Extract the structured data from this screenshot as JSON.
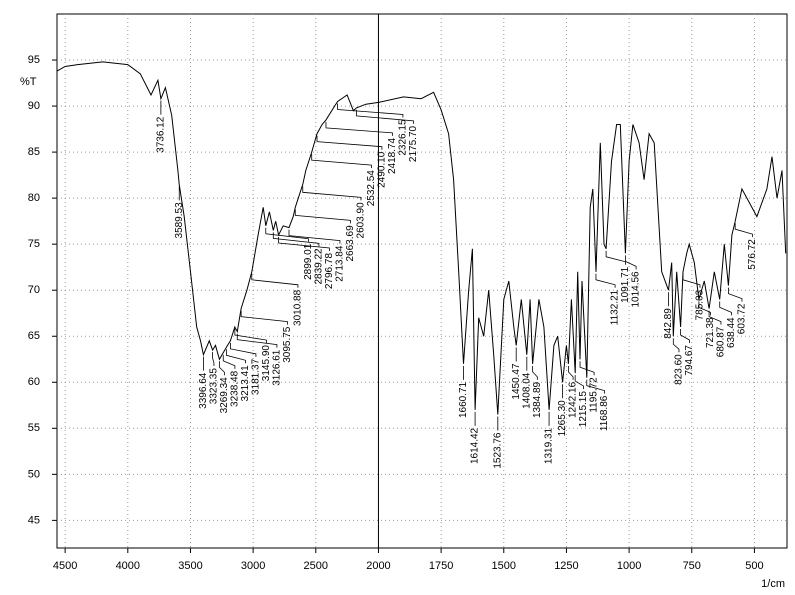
{
  "chart_data": {
    "type": "line",
    "y_label": "%T",
    "x_label": "1/cm",
    "color": "#000000",
    "grid": true,
    "cursor": 2000,
    "xlim": [
      4565,
      370
    ],
    "ylim": [
      42,
      100
    ],
    "xticks": [
      4500,
      4000,
      3500,
      3000,
      2500,
      2000,
      1750,
      1500,
      1250,
      1000,
      750,
      500
    ],
    "yticks": [
      45,
      50,
      55,
      60,
      65,
      70,
      75,
      80,
      85,
      90,
      95
    ],
    "x": [
      4565,
      4500,
      4400,
      4200,
      4000,
      3900,
      3815,
      3760,
      3736.12,
      3700,
      3650,
      3600,
      3589.53,
      3550,
      3500,
      3450,
      3420,
      3396.64,
      3350,
      3323.35,
      3300,
      3269.34,
      3238.48,
      3213.41,
      3181.37,
      3145.9,
      3126.61,
      3095.75,
      3050,
      3010.88,
      2960,
      2920,
      2899.01,
      2870,
      2839.22,
      2820,
      2796.78,
      2760,
      2713.84,
      2680,
      2663.69,
      2603.9,
      2580,
      2532.54,
      2490.1,
      2450,
      2418.74,
      2350,
      2326.15,
      2250,
      2200,
      2175.7,
      2100,
      2000,
      1900,
      1830,
      1780,
      1750,
      1720,
      1700,
      1680,
      1660.71,
      1640,
      1625,
      1614.42,
      1600,
      1580,
      1560,
      1540,
      1523.76,
      1500,
      1480,
      1460,
      1450.47,
      1430,
      1408.04,
      1395,
      1384.89,
      1360,
      1340,
      1319.31,
      1300,
      1285,
      1265.3,
      1250,
      1242.16,
      1230,
      1215.15,
      1205,
      1195.72,
      1188,
      1168.86,
      1155,
      1145,
      1132.21,
      1115,
      1100,
      1091.71,
      1070,
      1050,
      1035,
      1014.56,
      1000,
      985,
      960,
      940,
      920,
      900,
      870,
      842.89,
      830,
      823.6,
      810,
      794.67,
      785.03,
      770,
      760,
      740,
      721.38,
      700,
      680.87,
      660,
      638.44,
      620,
      603.72,
      590,
      576.72,
      550,
      520,
      490,
      450,
      430,
      410,
      390,
      375
    ],
    "values": [
      93.8,
      94.3,
      94.5,
      94.8,
      94.5,
      93.5,
      91.2,
      92.8,
      90.8,
      92,
      89,
      83,
      81.5,
      78,
      72,
      66,
      64.5,
      63,
      64.5,
      63.5,
      64,
      62.5,
      63.2,
      63.8,
      64.5,
      66,
      65.5,
      68,
      70,
      72,
      76,
      79,
      77,
      78.5,
      76.5,
      77.5,
      76,
      77,
      76.8,
      78,
      79,
      81.5,
      83,
      85,
      87,
      88,
      88.5,
      90,
      90.5,
      91.2,
      89.5,
      89.8,
      90.2,
      90.4,
      91,
      90.8,
      91.5,
      89.6,
      87,
      82,
      72,
      62,
      70,
      74.5,
      57,
      67,
      65,
      70,
      63,
      56.5,
      69,
      71,
      66,
      64,
      69,
      63,
      69,
      62,
      69,
      66,
      57,
      64,
      65,
      60,
      64,
      62,
      69,
      61,
      72,
      62.5,
      71,
      60.5,
      79,
      81,
      72,
      86,
      75,
      74.5,
      84,
      88,
      88,
      74,
      84,
      88,
      86,
      82,
      87,
      86,
      72,
      70,
      73,
      65,
      72,
      66,
      72,
      74,
      75,
      73,
      69,
      71,
      68,
      72,
      69,
      75,
      70.5,
      76,
      77.5,
      81,
      79.5,
      78,
      81,
      84.5,
      80,
      83,
      74
    ],
    "peaks": [
      {
        "value": 3736.12,
        "label": "3736.12",
        "t": 90.8
      },
      {
        "value": 3589.53,
        "label": "3589.53",
        "t": 81.5
      },
      {
        "value": 3396.64,
        "label": "3396.64",
        "t": 63
      },
      {
        "value": 3323.35,
        "label": "3323.35",
        "t": 63.5
      },
      {
        "value": 3269.34,
        "label": "3269.34",
        "t": 62.5
      },
      {
        "value": 3238.48,
        "label": "3238.48",
        "t": 63.2
      },
      {
        "value": 3213.41,
        "label": "3213.41",
        "t": 63.8
      },
      {
        "value": 3181.37,
        "label": "3181.37",
        "t": 64.5
      },
      {
        "value": 3145.9,
        "label": "3145.90",
        "t": 66
      },
      {
        "value": 3126.61,
        "label": "3126.61",
        "t": 65.5
      },
      {
        "value": 3095.75,
        "label": "3095.75",
        "t": 68
      },
      {
        "value": 3010.88,
        "label": "3010.88",
        "t": 72
      },
      {
        "value": 2899.01,
        "label": "2899.01",
        "t": 77
      },
      {
        "value": 2839.22,
        "label": "2839.22",
        "t": 76.5
      },
      {
        "value": 2796.78,
        "label": "2796.78",
        "t": 76
      },
      {
        "value": 2713.84,
        "label": "2713.84",
        "t": 76.8
      },
      {
        "value": 2663.69,
        "label": "2663.69",
        "t": 79
      },
      {
        "value": 2603.9,
        "label": "2603.90",
        "t": 81.5
      },
      {
        "value": 2532.54,
        "label": "2532.54",
        "t": 85
      },
      {
        "value": 2490.1,
        "label": "2490.10",
        "t": 87
      },
      {
        "value": 2418.74,
        "label": "2418.74",
        "t": 88.5
      },
      {
        "value": 2326.15,
        "label": "2326.15",
        "t": 90.5
      },
      {
        "value": 2175.7,
        "label": "2175.70",
        "t": 89.8
      },
      {
        "value": 1660.71,
        "label": "1660.71",
        "t": 62
      },
      {
        "value": 1614.42,
        "label": "1614.42",
        "t": 57
      },
      {
        "value": 1523.76,
        "label": "1523.76",
        "t": 56.5
      },
      {
        "value": 1450.47,
        "label": "1450.47",
        "t": 64
      },
      {
        "value": 1408.04,
        "label": "1408.04",
        "t": 63
      },
      {
        "value": 1384.89,
        "label": "1384.89",
        "t": 62
      },
      {
        "value": 1319.31,
        "label": "1319.31",
        "t": 57
      },
      {
        "value": 1265.3,
        "label": "1265.30",
        "t": 60
      },
      {
        "value": 1242.16,
        "label": "1242.16",
        "t": 62
      },
      {
        "value": 1215.15,
        "label": "1215.15",
        "t": 61
      },
      {
        "value": 1195.72,
        "label": "1195.72",
        "t": 62.5
      },
      {
        "value": 1168.86,
        "label": "1168.86",
        "t": 60.5
      },
      {
        "value": 1132.21,
        "label": "1132.21",
        "t": 72
      },
      {
        "value": 1091.71,
        "label": "1091.71",
        "t": 74.5
      },
      {
        "value": 1014.56,
        "label": "1014.56",
        "t": 74
      },
      {
        "value": 842.89,
        "label": "842.89",
        "t": 70
      },
      {
        "value": 823.6,
        "label": "823.60",
        "t": 65
      },
      {
        "value": 794.67,
        "label": "794.67",
        "t": 66
      },
      {
        "value": 785.03,
        "label": "785.03",
        "t": 72
      },
      {
        "value": 721.38,
        "label": "721.38",
        "t": 69
      },
      {
        "value": 680.87,
        "label": "680.87",
        "t": 68
      },
      {
        "value": 638.44,
        "label": "638.44",
        "t": 69
      },
      {
        "value": 603.72,
        "label": "603.72",
        "t": 70.5
      },
      {
        "value": 576.72,
        "label": "576.72",
        "t": 77.5
      }
    ]
  }
}
